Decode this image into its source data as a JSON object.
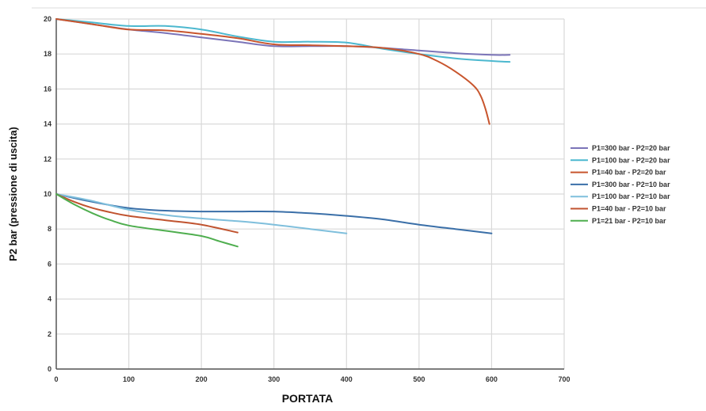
{
  "chart_data": {
    "type": "line",
    "title": "",
    "xlabel": "PORTATA",
    "ylabel": "P2 bar (pressione di uscita)",
    "xlim": [
      0,
      700
    ],
    "ylim": [
      0,
      20
    ],
    "x_ticks": [
      0,
      100,
      200,
      300,
      400,
      500,
      600,
      700
    ],
    "y_ticks": [
      0,
      2,
      4,
      6,
      8,
      10,
      12,
      14,
      16,
      18,
      20
    ],
    "grid": true,
    "legend_position": "right",
    "series": [
      {
        "name": "P1=300 bar - P2=20 bar",
        "color": "#7b74b8",
        "x": [
          0,
          50,
          100,
          150,
          200,
          250,
          300,
          350,
          400,
          450,
          500,
          550,
          600,
          625
        ],
        "y": [
          20,
          19.7,
          19.4,
          19.2,
          18.95,
          18.7,
          18.45,
          18.45,
          18.45,
          18.35,
          18.2,
          18.05,
          17.95,
          17.95
        ]
      },
      {
        "name": "P1=100 bar - P2=20 bar",
        "color": "#4cb8cf",
        "x": [
          0,
          50,
          100,
          150,
          200,
          250,
          300,
          350,
          400,
          450,
          500,
          550,
          600,
          625
        ],
        "y": [
          20,
          19.8,
          19.6,
          19.6,
          19.4,
          19.0,
          18.7,
          18.7,
          18.65,
          18.3,
          18.0,
          17.75,
          17.6,
          17.55
        ]
      },
      {
        "name": "P1=40 bar - P2=20 bar",
        "color": "#c8552d",
        "x": [
          0,
          50,
          100,
          150,
          200,
          250,
          300,
          350,
          400,
          450,
          500,
          525,
          550,
          575,
          585,
          592,
          597
        ],
        "y": [
          20,
          19.7,
          19.4,
          19.35,
          19.15,
          18.9,
          18.55,
          18.5,
          18.45,
          18.35,
          18.0,
          17.6,
          17.0,
          16.2,
          15.6,
          14.8,
          14.0
        ]
      },
      {
        "name": "P1=300 bar - P2=10 bar",
        "color": "#3a6fa8",
        "x": [
          0,
          50,
          100,
          150,
          200,
          250,
          300,
          350,
          400,
          450,
          500,
          550,
          600
        ],
        "y": [
          10,
          9.55,
          9.2,
          9.05,
          9.0,
          9.0,
          9.0,
          8.9,
          8.75,
          8.55,
          8.25,
          8.0,
          7.75
        ]
      },
      {
        "name": "P1=100 bar - P2=10 bar",
        "color": "#7fbfdc",
        "x": [
          0,
          50,
          100,
          150,
          200,
          250,
          300,
          350,
          400
        ],
        "y": [
          10,
          9.6,
          9.1,
          8.8,
          8.6,
          8.45,
          8.25,
          8.0,
          7.75
        ]
      },
      {
        "name": "P1=40 bar - P2=10 bar",
        "color": "#c0532f",
        "x": [
          0,
          25,
          50,
          75,
          100,
          150,
          200,
          250
        ],
        "y": [
          10,
          9.55,
          9.2,
          8.95,
          8.75,
          8.5,
          8.25,
          7.8
        ]
      },
      {
        "name": "P1=21 bar - P2=10 bar",
        "color": "#4fae4f",
        "x": [
          0,
          25,
          50,
          75,
          100,
          150,
          200,
          225,
          250
        ],
        "y": [
          10,
          9.4,
          8.9,
          8.5,
          8.2,
          7.9,
          7.6,
          7.3,
          7.0
        ]
      }
    ]
  }
}
